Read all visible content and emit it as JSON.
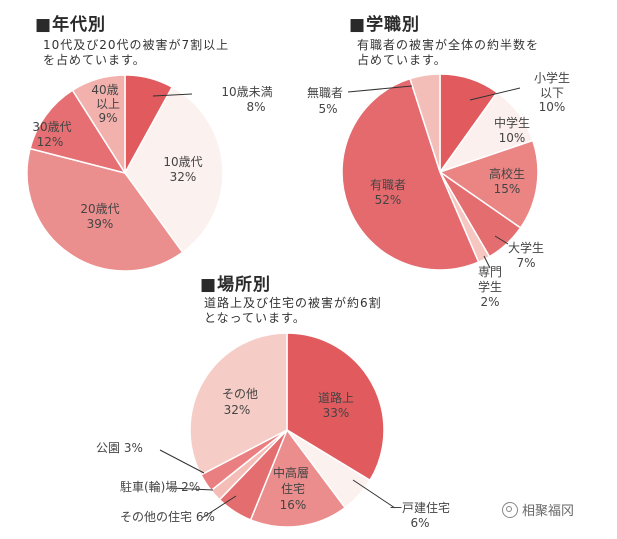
{
  "watermark": "相聚福冈",
  "chart_data": [
    {
      "type": "pie",
      "title": "年代別",
      "subtitle": "10代及び20代の被害が7割以上を占めています。",
      "slices": [
        {
          "label": "10歳未満",
          "value": 8,
          "display": "8%",
          "color": "#e05a5e"
        },
        {
          "label": "10歳代",
          "value": 32,
          "display": "32%",
          "color": "#fbf1ee"
        },
        {
          "label": "20歳代",
          "value": 39,
          "display": "39%",
          "color": "#eb8e8e"
        },
        {
          "label": "30歳代",
          "value": 12,
          "display": "12%",
          "color": "#e56f72"
        },
        {
          "label": "40歳以上",
          "value": 9,
          "display": "9%",
          "color": "#f2b1ac"
        }
      ]
    },
    {
      "type": "pie",
      "title": "学職別",
      "subtitle": "有職者の被害が全体の約半数を占めています。",
      "slices": [
        {
          "label": "小学生以下",
          "value": 10,
          "display": "10%",
          "color": "#e05a5e"
        },
        {
          "label": "中学生",
          "value": 10,
          "display": "10%",
          "color": "#fbf0ed"
        },
        {
          "label": "高校生",
          "value": 15,
          "display": "15%",
          "color": "#ea8584"
        },
        {
          "label": "大学生",
          "value": 7,
          "display": "7%",
          "color": "#e46d70"
        },
        {
          "label": "専門学生",
          "value": 2,
          "display": "2%",
          "color": "#f6c6c1"
        },
        {
          "label": "有職者",
          "value": 52,
          "display": "52%",
          "color": "#e46a6e"
        },
        {
          "label": "無職者",
          "value": 5,
          "display": "5%",
          "color": "#f4beb8"
        }
      ]
    },
    {
      "type": "pie",
      "title": "場所別",
      "subtitle": "道路上及び住宅の被害が約6割となっています。",
      "slices": [
        {
          "label": "道路上",
          "value": 33,
          "display": "33%",
          "color": "#e05a5e"
        },
        {
          "label": "一戸建住宅",
          "value": 6,
          "display": "6%",
          "color": "#fbf1ee"
        },
        {
          "label": "中高層住宅",
          "value": 16,
          "display": "16%",
          "color": "#eb8d8d"
        },
        {
          "label": "その他の住宅",
          "value": 6,
          "display": "6%",
          "color": "#e46d70"
        },
        {
          "label": "駐車(輪)場",
          "value": 2,
          "display": "2%",
          "color": "#f4bdb7"
        },
        {
          "label": "公園",
          "value": 3,
          "display": "3%",
          "color": "#e97f80"
        },
        {
          "label": "その他",
          "value": 32,
          "display": "32%",
          "color": "#f5cdc6"
        }
      ]
    }
  ]
}
